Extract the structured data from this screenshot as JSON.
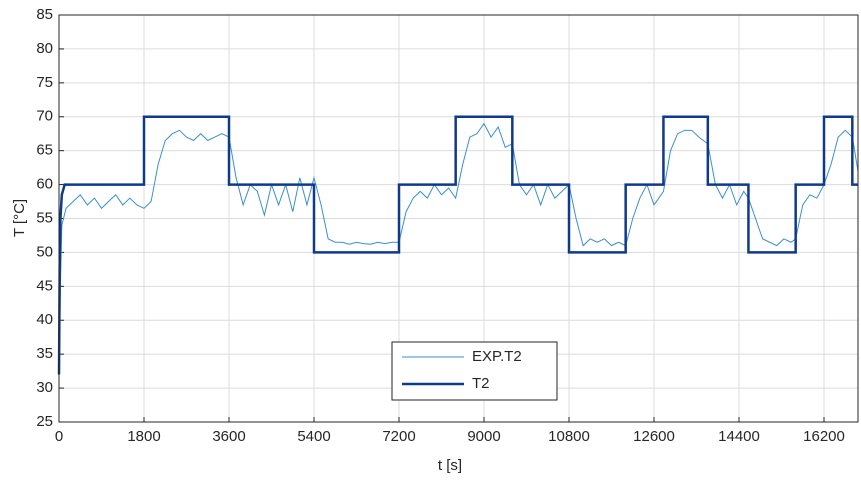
{
  "chart_data": {
    "type": "line",
    "xlabel": "t [s]",
    "ylabel": "T [°C]",
    "xlim": [
      0,
      16920
    ],
    "ylim": [
      25,
      85
    ],
    "xticks": [
      0,
      1800,
      3600,
      5400,
      7200,
      9000,
      10800,
      12600,
      14400,
      16200
    ],
    "yticks": [
      25,
      30,
      35,
      40,
      45,
      50,
      55,
      60,
      65,
      70,
      75,
      80,
      85
    ],
    "grid": true,
    "legend": "lower center",
    "series": [
      {
        "name": "EXP.T2",
        "color": "#3a8fd0",
        "width": 1,
        "x": [
          0,
          30,
          60,
          150,
          300,
          450,
          600,
          750,
          900,
          1050,
          1200,
          1350,
          1500,
          1650,
          1800,
          1950,
          2100,
          2250,
          2400,
          2550,
          2700,
          2850,
          3000,
          3150,
          3300,
          3450,
          3600,
          3750,
          3900,
          4050,
          4200,
          4350,
          4500,
          4650,
          4800,
          4950,
          5100,
          5250,
          5400,
          5550,
          5700,
          5850,
          6000,
          6150,
          6300,
          6450,
          6600,
          6750,
          6900,
          7050,
          7200,
          7350,
          7500,
          7650,
          7800,
          7950,
          8100,
          8250,
          8400,
          8550,
          8700,
          8850,
          9000,
          9150,
          9300,
          9450,
          9600,
          9750,
          9900,
          10050,
          10200,
          10350,
          10500,
          10650,
          10800,
          10950,
          11100,
          11250,
          11400,
          11550,
          11700,
          11850,
          12000,
          12150,
          12300,
          12450,
          12600,
          12800,
          12950,
          13100,
          13250,
          13400,
          13550,
          13740,
          13900,
          14050,
          14200,
          14350,
          14500,
          14600,
          14750,
          14900,
          15050,
          15200,
          15350,
          15500,
          15600,
          15750,
          15900,
          16050,
          16200,
          16350,
          16500,
          16650,
          16800,
          16920
        ],
        "values": [
          32,
          45,
          54,
          56.5,
          57.5,
          58.5,
          57,
          58,
          56.5,
          57.5,
          58.5,
          57,
          58,
          57,
          56.5,
          57.5,
          63,
          66.5,
          67.5,
          68,
          67,
          66.5,
          67.5,
          66.5,
          67,
          67.5,
          67,
          61,
          57,
          60,
          59,
          55.5,
          60,
          57,
          60,
          56,
          61,
          57,
          61,
          57,
          52,
          51.5,
          51.5,
          51.2,
          51.5,
          51.3,
          51.2,
          51.5,
          51.3,
          51.5,
          51.5,
          56,
          58,
          59,
          58,
          60,
          58.5,
          59.5,
          58,
          63,
          67,
          67.5,
          69,
          67,
          68.5,
          65.5,
          66,
          60,
          58.5,
          60,
          57,
          60,
          58,
          59,
          60,
          55,
          51,
          52,
          51.5,
          52,
          51,
          51.5,
          51,
          55,
          58,
          60,
          57,
          59,
          65,
          67.5,
          68,
          68,
          67,
          66,
          60,
          58,
          60,
          57,
          59,
          58,
          55,
          52,
          51.5,
          51,
          52,
          51.5,
          52,
          57,
          58.5,
          58,
          60,
          63,
          67,
          68,
          67,
          62
        ]
      },
      {
        "name": "T2",
        "color": "#0f3a8a",
        "width": 2.5,
        "x": [
          0,
          15,
          30,
          60,
          120,
          1800,
          1800,
          3600,
          3600,
          5400,
          5400,
          7200,
          7200,
          8400,
          8400,
          9600,
          9600,
          10800,
          10800,
          12000,
          12000,
          12800,
          12800,
          13740,
          13740,
          14600,
          14600,
          15600,
          15600,
          16200,
          16200,
          16800,
          16800,
          16920
        ],
        "values": [
          32,
          48,
          55,
          58.5,
          60,
          60,
          70,
          70,
          60,
          60,
          50,
          50,
          60,
          60,
          70,
          70,
          60,
          60,
          50,
          50,
          60,
          60,
          70,
          70,
          60,
          60,
          50,
          50,
          60,
          60,
          70,
          70,
          60,
          60
        ]
      }
    ]
  }
}
